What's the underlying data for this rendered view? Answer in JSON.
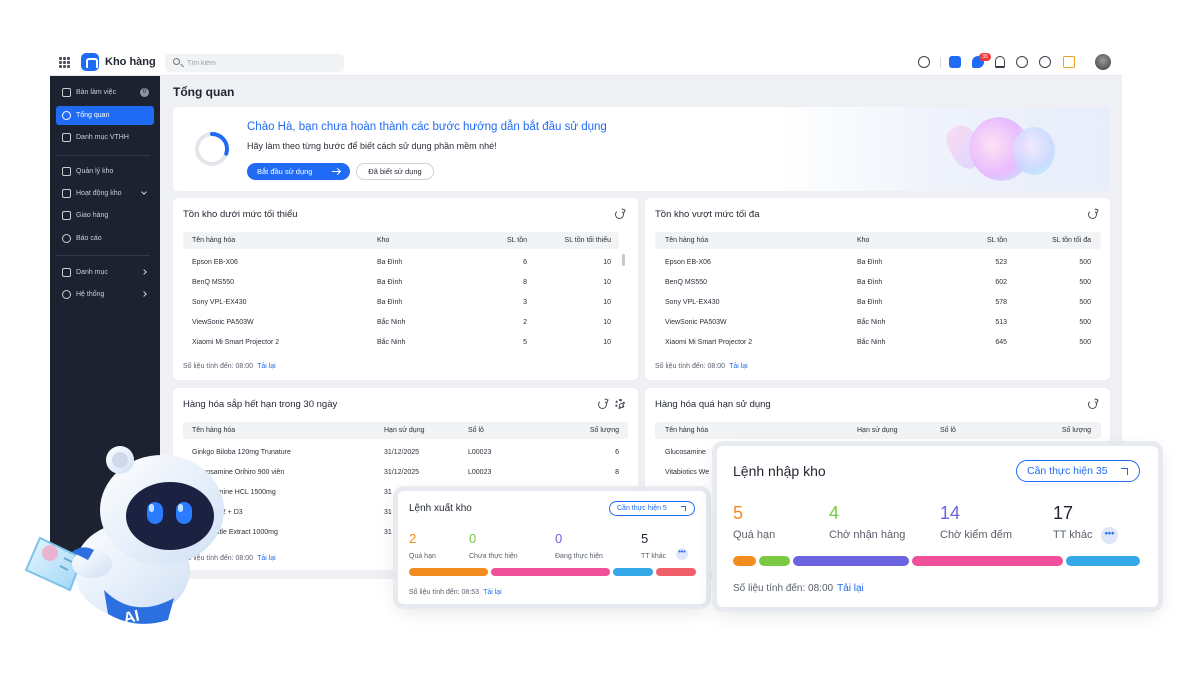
{
  "topbar": {
    "app_title": "Kho hàng",
    "search_placeholder": "Tìm kiếm",
    "notification_count": "35",
    "icons": [
      "grid-icon",
      "logo-icon",
      "search-icon",
      "settings-icon",
      "app-icon",
      "chat-icon",
      "bell-icon",
      "help-icon",
      "more-icon",
      "package-icon",
      "avatar"
    ]
  },
  "sidebar": {
    "items": [
      {
        "label": "Bàn làm việc",
        "icon": "desk-icon",
        "count": "0"
      },
      {
        "label": "Tổng quan",
        "icon": "dashboard-icon",
        "active": true
      },
      {
        "label": "Danh mục VTHH",
        "icon": "box-icon"
      },
      {
        "label": "Quản lý kho",
        "icon": "warehouse-icon"
      },
      {
        "label": "Hoạt động kho",
        "icon": "cart-icon"
      },
      {
        "label": "Giao hàng",
        "icon": "truck-icon"
      },
      {
        "label": "Báo cáo",
        "icon": "chart-icon"
      },
      {
        "label": "Danh mục",
        "icon": "category-icon"
      },
      {
        "label": "Hệ thống",
        "icon": "gear-icon"
      }
    ]
  },
  "page_title": "Tổng quan",
  "banner": {
    "heading": "Chào Hà, bạn chưa hoàn thành các bước hướng dẫn bắt đầu sử dụng",
    "subtext": "Hãy làm theo từng bước để biết cách sử dụng phần mềm nhé!",
    "start_button": "Bắt đầu sử dụng",
    "known_button": "Đã biết sử dụng",
    "progress": 0.3
  },
  "cards": {
    "min_stock": {
      "title": "Tồn kho dưới mức tối thiểu",
      "headers": [
        "Tên hàng hóa",
        "Kho",
        "SL tồn",
        "SL tồn tối thiểu"
      ],
      "rows": [
        [
          "Epson EB-X06",
          "Ba Đình",
          "6",
          "10"
        ],
        [
          "BenQ MS550",
          "Ba Đình",
          "8",
          "10"
        ],
        [
          "Sony VPL-EX430",
          "Ba Đình",
          "3",
          "10"
        ],
        [
          "ViewSonic PA503W",
          "Bắc Ninh",
          "2",
          "10"
        ],
        [
          "Xiaomi Mi Smart Projector 2",
          "Bắc Ninh",
          "5",
          "10"
        ]
      ],
      "footer": "Số liệu tính đến: 08:00",
      "reload": "Tải lại"
    },
    "max_stock": {
      "title": "Tồn kho vượt mức tối đa",
      "headers": [
        "Tên hàng hóa",
        "Kho",
        "SL tồn",
        "SL tồn tối đa"
      ],
      "rows": [
        [
          "Epson EB-X06",
          "Ba Đình",
          "523",
          "500"
        ],
        [
          "BenQ MS550",
          "Ba Đình",
          "602",
          "500"
        ],
        [
          "Sony VPL-EX430",
          "Ba Đình",
          "578",
          "500"
        ],
        [
          "ViewSonic PA503W",
          "Bắc Ninh",
          "513",
          "500"
        ],
        [
          "Xiaomi Mi Smart Projector 2",
          "Bắc Ninh",
          "645",
          "500"
        ]
      ],
      "footer": "Số liệu tính đến: 08:00",
      "reload": "Tải lại"
    },
    "expiring": {
      "title": "Hàng hóa sắp hết hạn trong 30 ngày",
      "headers": [
        "Tên hàng hóa",
        "Hạn sử dụng",
        "Số lô",
        "Số lượng"
      ],
      "rows": [
        [
          "Ginkgo Biloba 120mg Trunature",
          "31/12/2025",
          "L00023",
          "6"
        ],
        [
          "Glucosamine Orihiro 900 viên",
          "31/12/2025",
          "L00023",
          "8"
        ],
        [
          "Glucosamine HCL 1500mg",
          "31",
          "",
          ""
        ],
        [
          "Vitamin K2 + D3",
          "31",
          "",
          ""
        ],
        [
          "Milk Thistle Extract 1000mg",
          "31",
          "",
          ""
        ]
      ],
      "footer": "Số liệu tính đến: 08:00",
      "reload": "Tải lại"
    },
    "expired": {
      "title": "Hàng hóa quá hạn sử dụng",
      "headers": [
        "Tên hàng hóa",
        "Hạn sử dụng",
        "Số lô",
        "Số lượng"
      ],
      "rows": [
        [
          "Glucosamine",
          "",
          "",
          ""
        ],
        [
          "Vitabiotics We",
          "",
          "",
          ""
        ]
      ]
    }
  },
  "export_popup": {
    "title": "Lệnh xuất kho",
    "pill": "Cần thực hiện 5",
    "stats": [
      {
        "value": "2",
        "label": "Quá hạn",
        "color": "#f28c1e"
      },
      {
        "value": "0",
        "label": "Chưa thực hiện",
        "color": "#7ac943"
      },
      {
        "value": "0",
        "label": "Đang thực hiện",
        "color": "#6b63e0"
      },
      {
        "value": "5",
        "label": "TT khác",
        "color": "#1f2430"
      }
    ],
    "footer": "Số liệu tính đến: 08:53",
    "reload": "Tải lại"
  },
  "import_popup": {
    "title": "Lệnh nhập kho",
    "pill": "Cần thực hiện 35",
    "stats": [
      {
        "value": "5",
        "label": "Quá hạn",
        "color": "#f28c1e"
      },
      {
        "value": "4",
        "label": "Chờ nhận hàng",
        "color": "#7ac943"
      },
      {
        "value": "14",
        "label": "Chờ kiểm đếm",
        "color": "#6b63e0"
      },
      {
        "value": "17",
        "label": "TT khác",
        "color": "#1f2430"
      }
    ],
    "footer": "Số liệu tính đến: 08:00",
    "reload": "Tải lại"
  },
  "colors": {
    "accent": "#1f6bf5",
    "sidebar_bg": "#1c2230",
    "bar_orange": "#f28c1e",
    "bar_green": "#7ac943",
    "bar_purple": "#6b63e0",
    "bar_pink": "#f0509a",
    "bar_blue": "#35a8e8",
    "bar_red": "#f0606a"
  }
}
